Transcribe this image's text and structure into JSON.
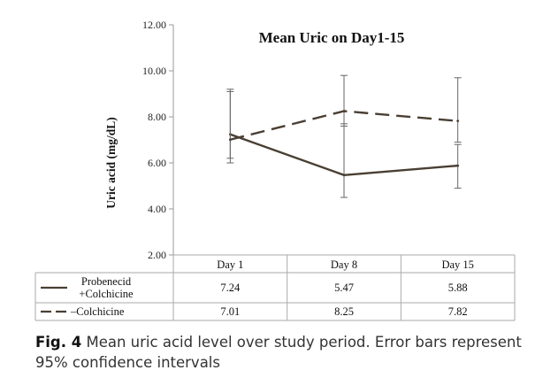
{
  "chart_data": {
    "type": "line",
    "title": "Mean Uric on Day1-15",
    "ylabel": "Uric acid (mg/dL)",
    "xlabel": "",
    "categories": [
      "Day 1",
      "Day 8",
      "Day 15"
    ],
    "ylim": [
      2.0,
      12.0
    ],
    "yticks": [
      "2.00",
      "4.00",
      "6.00",
      "8.00",
      "10.00",
      "12.00"
    ],
    "grid": false,
    "legend": "table-below-plot",
    "series": [
      {
        "name": "Probenecid +Colchicine",
        "name_lines": [
          "Probenecid",
          "+Colchicine"
        ],
        "style": "solid",
        "color": "#4a3f33",
        "values": [
          7.24,
          5.47,
          5.88
        ],
        "labels": [
          "7.24",
          "5.47",
          "5.88"
        ],
        "ci_low": [
          6.2,
          4.5,
          4.9
        ],
        "ci_high": [
          9.1,
          7.7,
          6.8
        ]
      },
      {
        "name": "Colchicine",
        "name_lines": [
          "–Colchicine"
        ],
        "style": "dashed",
        "color": "#4a3f33",
        "values": [
          7.01,
          8.25,
          7.82
        ],
        "labels": [
          "7.01",
          "8.25",
          "7.82"
        ],
        "ci_low": [
          6.0,
          7.6,
          6.9
        ],
        "ci_high": [
          9.2,
          9.8,
          9.7
        ]
      }
    ]
  },
  "caption": {
    "label": "Fig. 4",
    "text": "Mean uric acid level over study period. Error bars represent 95% confidence intervals"
  },
  "colors": {
    "line": "#4a3f33",
    "error_bar": "#666666",
    "axis": "#999999",
    "table_border": "#aaaaaa"
  }
}
